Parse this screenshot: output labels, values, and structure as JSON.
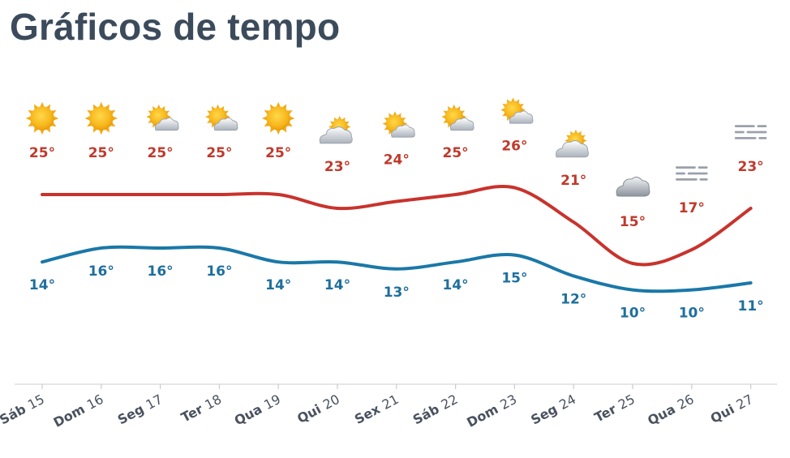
{
  "header": {
    "title": "Gráficos de tempo"
  },
  "colors": {
    "high": "#c8332c",
    "low": "#1a78a8",
    "title": "#3b4b5c",
    "axis": "#dddddd"
  },
  "chart_data": {
    "type": "line",
    "title": "Gráficos de tempo",
    "xlabel": "",
    "ylabel": "",
    "grid": false,
    "legend": "none",
    "unit": "°",
    "categories": [
      "Sáb 15",
      "Dom 16",
      "Seg 17",
      "Ter 18",
      "Qua 19",
      "Qui 20",
      "Sex 21",
      "Sáb 22",
      "Dom 23",
      "Seg 24",
      "Ter 25",
      "Qua 26",
      "Qui 27"
    ],
    "day_names": [
      "Sáb",
      "Dom",
      "Seg",
      "Ter",
      "Qua",
      "Qui",
      "Sex",
      "Sáb",
      "Dom",
      "Seg",
      "Ter",
      "Qua",
      "Qui"
    ],
    "day_numbers": [
      "15",
      "16",
      "17",
      "18",
      "19",
      "20",
      "21",
      "22",
      "23",
      "24",
      "25",
      "26",
      "27"
    ],
    "weather_icons": [
      "sun-icon",
      "sun-icon",
      "sun-cloud-icon",
      "sun-cloud-icon",
      "sun-icon",
      "cloud-sun-icon",
      "sun-cloud-icon",
      "sun-cloud-icon",
      "sun-cloud-icon",
      "cloud-sun-icon",
      "cloud-icon",
      "fog-icon",
      "fog-icon"
    ],
    "series": [
      {
        "key": "high",
        "values": [
          25,
          25,
          25,
          25,
          25,
          23,
          24,
          25,
          26,
          21,
          15,
          17,
          23
        ]
      },
      {
        "key": "low",
        "values": [
          14,
          16,
          16,
          16,
          14,
          14,
          13,
          14,
          15,
          12,
          10,
          10,
          11
        ]
      }
    ]
  }
}
